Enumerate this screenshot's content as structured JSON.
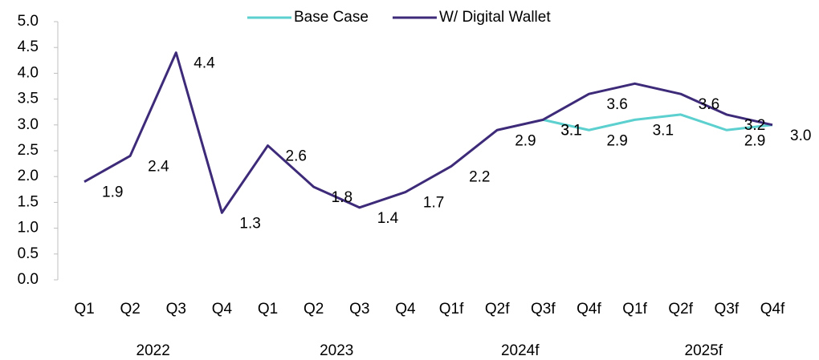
{
  "chart_data": {
    "type": "line",
    "categories": [
      "Q1",
      "Q2",
      "Q3",
      "Q4",
      "Q1",
      "Q2",
      "Q3",
      "Q4",
      "Q1f",
      "Q2f",
      "Q3f",
      "Q4f",
      "Q1f",
      "Q2f",
      "Q3f",
      "Q4f"
    ],
    "groups": [
      {
        "label": "2022",
        "span": [
          0,
          3
        ]
      },
      {
        "label": "2023",
        "span": [
          4,
          7
        ]
      },
      {
        "label": "2024f",
        "span": [
          8,
          11
        ]
      },
      {
        "label": "2025f",
        "span": [
          12,
          15
        ]
      }
    ],
    "series": [
      {
        "name": "Base Case",
        "color": "#5ccfcf",
        "values": [
          null,
          null,
          null,
          null,
          null,
          null,
          null,
          null,
          null,
          null,
          3.1,
          2.9,
          3.1,
          3.2,
          2.9,
          3.0
        ],
        "value_labels": [
          null,
          null,
          null,
          null,
          null,
          null,
          null,
          null,
          null,
          null,
          "3.1",
          "2.9",
          "3.1",
          null,
          "2.9",
          null
        ]
      },
      {
        "name": "W/ Digital Wallet",
        "color": "#3d2a78",
        "values": [
          1.9,
          2.4,
          4.4,
          1.3,
          2.6,
          1.8,
          1.4,
          1.7,
          2.2,
          2.9,
          3.1,
          3.6,
          3.8,
          3.6,
          3.2,
          3.0
        ],
        "value_labels": [
          "1.9",
          "2.4",
          "4.4",
          "1.3",
          "2.6",
          "1.8",
          "1.4",
          "1.7",
          "2.2",
          "2.9",
          "3.1",
          "3.6",
          null,
          "3.6",
          "3.2",
          "3.0"
        ]
      }
    ],
    "ylim": [
      0,
      5
    ],
    "yticks": [
      {
        "value": 0,
        "label": "0.0"
      },
      {
        "value": 0.5,
        "label": "0.5"
      },
      {
        "value": 1,
        "label": "1.0"
      },
      {
        "value": 1.5,
        "label": "1.5"
      },
      {
        "value": 2,
        "label": "2.0"
      },
      {
        "value": 2.5,
        "label": "2.5"
      },
      {
        "value": 3,
        "label": "3.0"
      },
      {
        "value": 3.5,
        "label": "3.5"
      },
      {
        "value": 4,
        "label": "4.0"
      },
      {
        "value": 4.5,
        "label": "4.5"
      },
      {
        "value": 5,
        "label": "5.0"
      }
    ],
    "legend": "top"
  }
}
